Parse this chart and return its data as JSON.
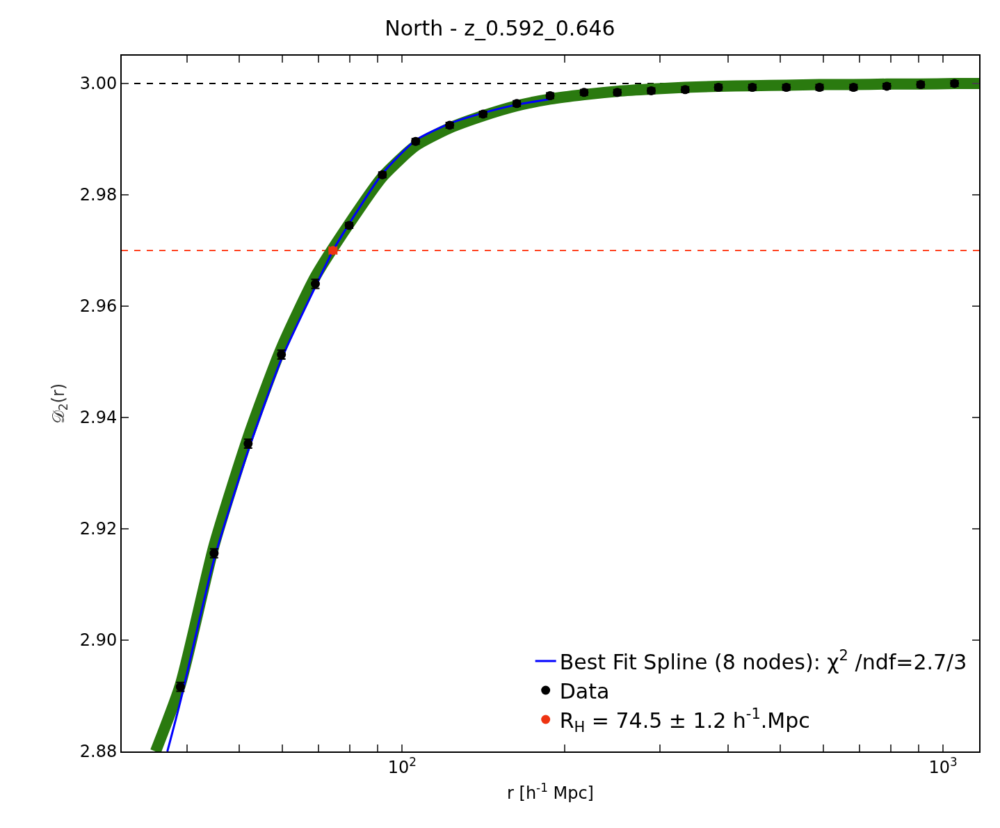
{
  "chart_data": {
    "type": "line",
    "title": "North - z_0.592_0.646",
    "xlabel": "r [h$^{-1}$ Mpc]",
    "ylabel": "𝒟$_{2}$(r)",
    "log": "x",
    "xlim": [
      30.3,
      1166
    ],
    "ylim": [
      2.88,
      3.005
    ],
    "xticks": [
      {
        "value": 40,
        "label": null
      },
      {
        "value": 50,
        "label": null
      },
      {
        "value": 60,
        "label": null
      },
      {
        "value": 70,
        "label": null
      },
      {
        "value": 80,
        "label": null
      },
      {
        "value": 90,
        "label": null
      },
      {
        "value": 100,
        "label": "10$^{2}$"
      },
      {
        "value": 200,
        "label": null
      },
      {
        "value": 300,
        "label": null
      },
      {
        "value": 400,
        "label": null
      },
      {
        "value": 500,
        "label": null
      },
      {
        "value": 600,
        "label": null
      },
      {
        "value": 700,
        "label": null
      },
      {
        "value": 800,
        "label": null
      },
      {
        "value": 900,
        "label": null
      },
      {
        "value": 1000,
        "label": "10$^{3}$"
      }
    ],
    "yticks": [
      {
        "value": 2.88,
        "label": "2.88"
      },
      {
        "value": 2.9,
        "label": "2.90"
      },
      {
        "value": 2.92,
        "label": "2.92"
      },
      {
        "value": 2.94,
        "label": "2.94"
      },
      {
        "value": 2.96,
        "label": "2.96"
      },
      {
        "value": 2.98,
        "label": "2.98"
      },
      {
        "value": 3.0,
        "label": "3.00"
      }
    ],
    "grid": false,
    "legend": "bottom right",
    "ref_lines": [
      {
        "axis": "y",
        "value": 3.0,
        "color": "#000000",
        "line_style": "dashed"
      },
      {
        "axis": "y",
        "value": 2.97,
        "color": "#ff4422",
        "line_style": "dashed"
      }
    ],
    "series": [
      {
        "color": "#2a7a0f",
        "x": [
          35.0,
          38.9,
          44.9,
          51.9,
          59.8,
          69.1,
          79.8,
          91.9,
          105.9,
          122.4,
          141.1,
          162.9,
          187.7,
          216.9,
          249.9,
          288.7,
          333.6,
          384.3,
          444.0,
          513.1,
          591.0,
          683.0,
          787.0,
          909.0,
          1050.0,
          1166.0
        ],
        "values": [
          2.88,
          2.892,
          2.917,
          2.9365,
          2.9525,
          2.9653,
          2.9748,
          2.9832,
          2.9888,
          2.992,
          2.9942,
          2.996,
          2.9972,
          2.998,
          2.9986,
          2.999,
          2.9993,
          2.9995,
          2.9996,
          2.9997,
          2.9998,
          2.9998,
          2.9999,
          2.9999,
          3.0,
          3.0
        ]
      },
      {
        "name": "Best Fit Spline (8 nodes): χ$^{2}$ /ndf=2.7/3",
        "color": "#0000ff",
        "x": [
          36.8,
          38.9,
          44.9,
          51.9,
          59.8,
          69.1,
          74.5,
          79.8,
          91.9,
          105.9,
          122.4,
          141.1,
          162.9,
          187.7
        ],
        "values": [
          2.88,
          2.889,
          2.9145,
          2.934,
          2.9505,
          2.9635,
          2.97,
          2.9748,
          2.9838,
          2.9898,
          2.9928,
          2.9947,
          2.9962,
          2.9972
        ]
      },
      {
        "type": "scatter",
        "name": "Data",
        "color": "#000000",
        "x": [
          38.9,
          44.9,
          51.9,
          59.8,
          69.1,
          79.8,
          91.9,
          105.9,
          122.4,
          141.1,
          162.9,
          187.7,
          216.9,
          249.9,
          288.7,
          333.6,
          384.3,
          444.0,
          513.1,
          591.0,
          683.0,
          787.0,
          909.0,
          1050.0
        ],
        "values": [
          2.8916,
          2.9156,
          2.9353,
          2.9513,
          2.964,
          2.9745,
          2.9836,
          2.9896,
          2.9925,
          2.9945,
          2.9964,
          2.9978,
          2.9984,
          2.9984,
          2.9987,
          2.9989,
          2.9993,
          2.9993,
          2.9993,
          2.9993,
          2.9993,
          2.9995,
          2.9998,
          3.0
        ],
        "errors": [
          0.0008,
          0.0008,
          0.0008,
          0.0008,
          0.0008,
          0.0005,
          0.0005,
          0.0005,
          0.0005,
          0.0005,
          0.0005,
          0.0005,
          0.0005,
          0.0005,
          0.0005,
          0.0005,
          0.0005,
          0.0005,
          0.0005,
          0.0005,
          0.0005,
          0.0005,
          0.0005,
          0.0005
        ]
      },
      {
        "type": "scatter",
        "name": "R$_{H}$ = 74.5 ± 1.2 h$^{-1}$.Mpc",
        "color": "#ee3311",
        "x": [
          74.5
        ],
        "values": [
          2.97
        ],
        "xerrors": [
          1.2
        ]
      }
    ]
  }
}
